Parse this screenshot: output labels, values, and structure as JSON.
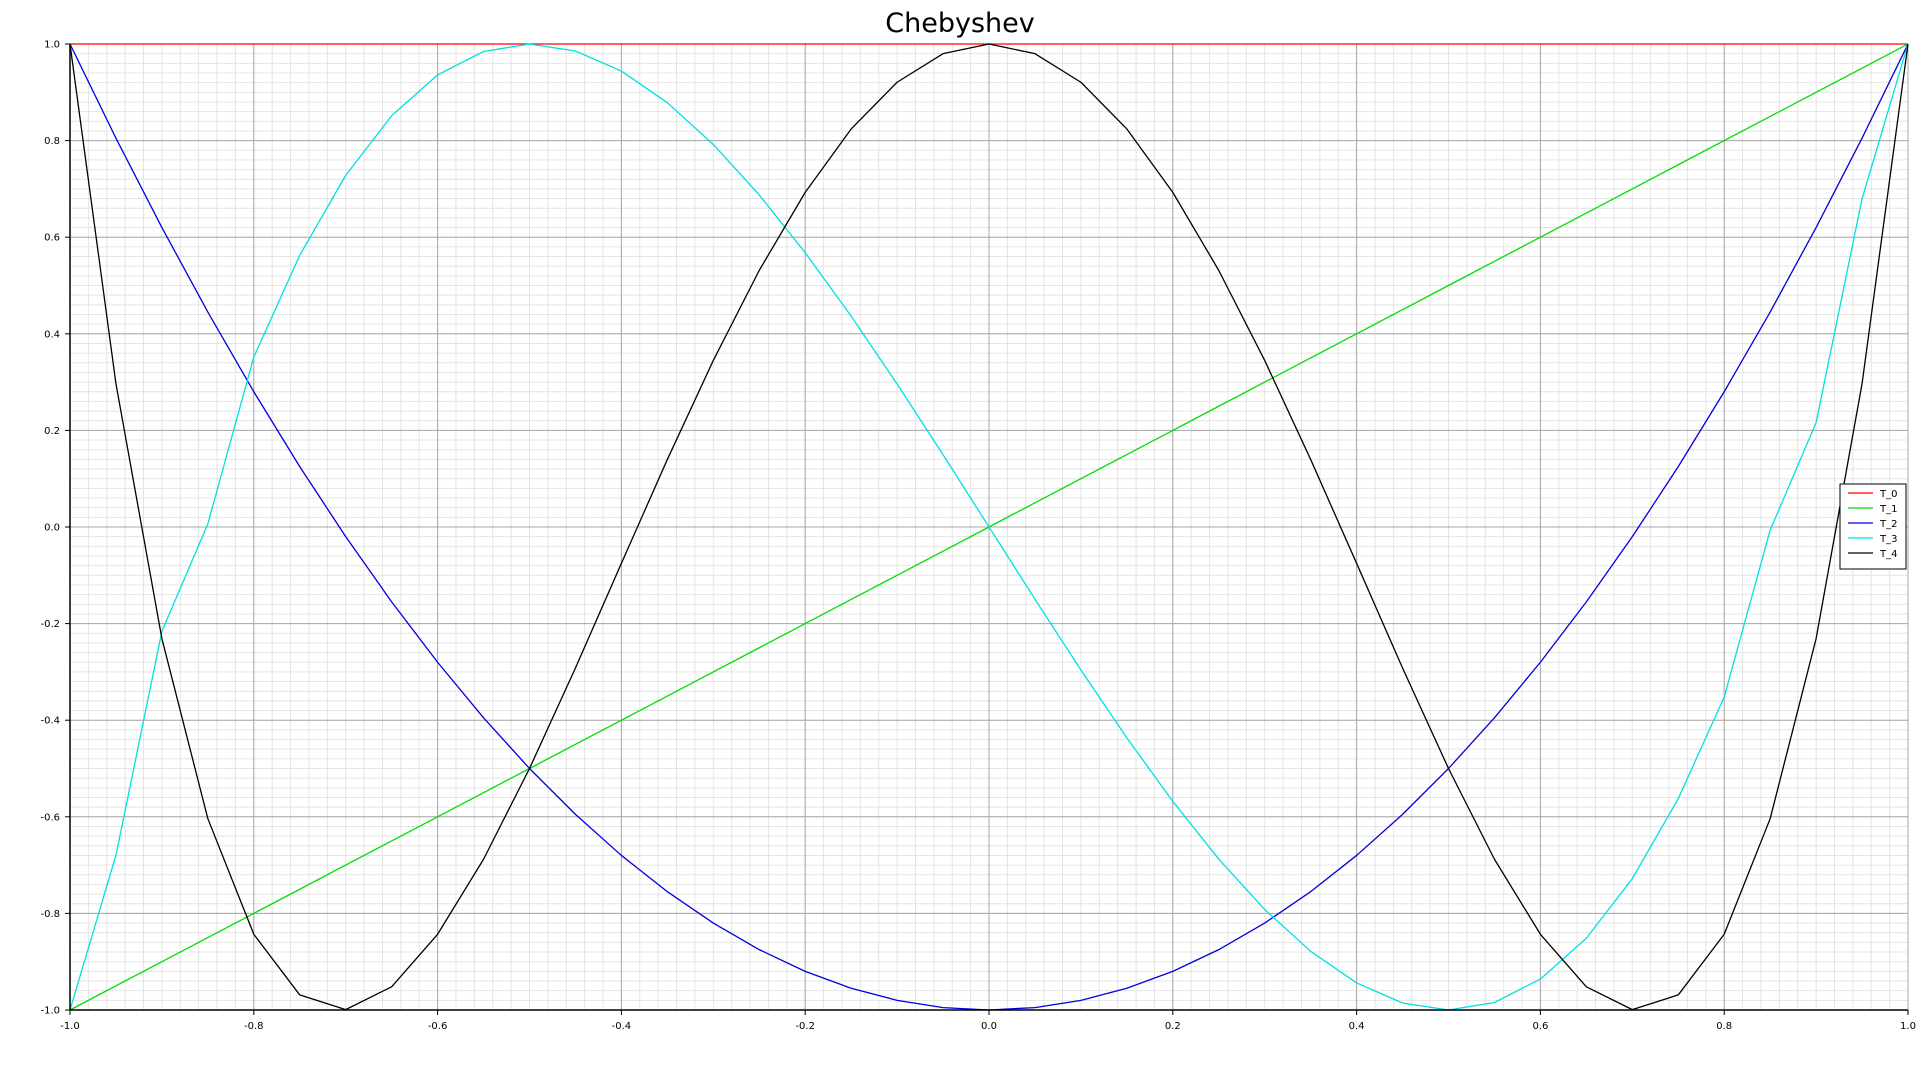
{
  "chart_data": {
    "type": "line",
    "title": "Chebyshev",
    "xlabel": "",
    "ylabel": "",
    "xlim": [
      -1.0,
      1.0
    ],
    "ylim": [
      -1.0,
      1.0
    ],
    "x_ticks": [
      "-1.0",
      "-0.8",
      "-0.6",
      "-0.4",
      "-0.2",
      "0.0",
      "0.2",
      "0.4",
      "0.6",
      "0.8",
      "1.0"
    ],
    "y_ticks": [
      "-1.0",
      "-0.8",
      "-0.6",
      "-0.4",
      "-0.2",
      "0.0",
      "0.2",
      "0.4",
      "0.6",
      "0.8",
      "1.0"
    ],
    "grid": true,
    "minor_grid": true,
    "legend_position": "right",
    "x": [
      -1.0,
      -0.95,
      -0.9,
      -0.85,
      -0.8,
      -0.75,
      -0.7,
      -0.65,
      -0.6,
      -0.55,
      -0.5,
      -0.45,
      -0.4,
      -0.35,
      -0.3,
      -0.25,
      -0.2,
      -0.15,
      -0.1,
      -0.05,
      0.0,
      0.05,
      0.1,
      0.15,
      0.2,
      0.25,
      0.3,
      0.35,
      0.4,
      0.45,
      0.5,
      0.55,
      0.6,
      0.65,
      0.7,
      0.75,
      0.8,
      0.85,
      0.9,
      0.95,
      1.0
    ],
    "series": [
      {
        "name": "T_0",
        "color": "#ff0000",
        "values": [
          1,
          1,
          1,
          1,
          1,
          1,
          1,
          1,
          1,
          1,
          1,
          1,
          1,
          1,
          1,
          1,
          1,
          1,
          1,
          1,
          1,
          1,
          1,
          1,
          1,
          1,
          1,
          1,
          1,
          1,
          1,
          1,
          1,
          1,
          1,
          1,
          1,
          1,
          1,
          1,
          1
        ]
      },
      {
        "name": "T_1",
        "color": "#00dd00",
        "values": [
          -1.0,
          -0.95,
          -0.9,
          -0.85,
          -0.8,
          -0.75,
          -0.7,
          -0.65,
          -0.6,
          -0.55,
          -0.5,
          -0.45,
          -0.4,
          -0.35,
          -0.3,
          -0.25,
          -0.2,
          -0.15,
          -0.1,
          -0.05,
          0.0,
          0.05,
          0.1,
          0.15,
          0.2,
          0.25,
          0.3,
          0.35,
          0.4,
          0.45,
          0.5,
          0.55,
          0.6,
          0.65,
          0.7,
          0.75,
          0.8,
          0.85,
          0.9,
          0.95,
          1.0
        ]
      },
      {
        "name": "T_2",
        "color": "#0000dd",
        "values": [
          1.0,
          0.805,
          0.62,
          0.445,
          0.28,
          0.125,
          -0.02,
          -0.155,
          -0.28,
          -0.395,
          -0.5,
          -0.595,
          -0.68,
          -0.755,
          -0.82,
          -0.875,
          -0.92,
          -0.955,
          -0.98,
          -0.995,
          -1.0,
          -0.995,
          -0.98,
          -0.955,
          -0.92,
          -0.875,
          -0.82,
          -0.755,
          -0.68,
          -0.595,
          -0.5,
          -0.395,
          -0.28,
          -0.155,
          -0.02,
          0.125,
          0.28,
          0.445,
          0.62,
          0.805,
          1.0
        ]
      },
      {
        "name": "T_3",
        "color": "#00e0e0",
        "values": [
          -1.0,
          -0.6795,
          -0.216,
          0.0065,
          0.352,
          0.5625,
          0.728,
          0.8515,
          0.936,
          0.9845,
          1.0,
          0.9855,
          0.944,
          0.8785,
          0.792,
          0.6875,
          0.568,
          0.4365,
          0.296,
          0.1495,
          0.0,
          -0.1495,
          -0.296,
          -0.4365,
          -0.568,
          -0.6875,
          -0.792,
          -0.8785,
          -0.944,
          -0.9855,
          -1.0,
          -0.9845,
          -0.936,
          -0.8515,
          -0.728,
          -0.5625,
          -0.352,
          -0.0065,
          0.216,
          0.6795,
          1.0
        ]
      },
      {
        "name": "T_4",
        "color": "#000000",
        "values": [
          1.0,
          0.2965,
          -0.2312,
          -0.6039,
          -0.8432,
          -0.9688,
          -0.9992,
          -0.9519,
          -0.8432,
          -0.6879,
          -0.5,
          -0.2919,
          -0.0752,
          0.1399,
          0.3448,
          0.5313,
          0.6928,
          0.8241,
          0.9208,
          0.98,
          1.0,
          0.98,
          0.9208,
          0.8241,
          0.6928,
          0.5313,
          0.3448,
          0.1399,
          -0.0752,
          -0.2919,
          -0.5,
          -0.6879,
          -0.8432,
          -0.9519,
          -0.9992,
          -0.9688,
          -0.8432,
          -0.6039,
          -0.2312,
          0.2965,
          1.0
        ]
      }
    ]
  }
}
